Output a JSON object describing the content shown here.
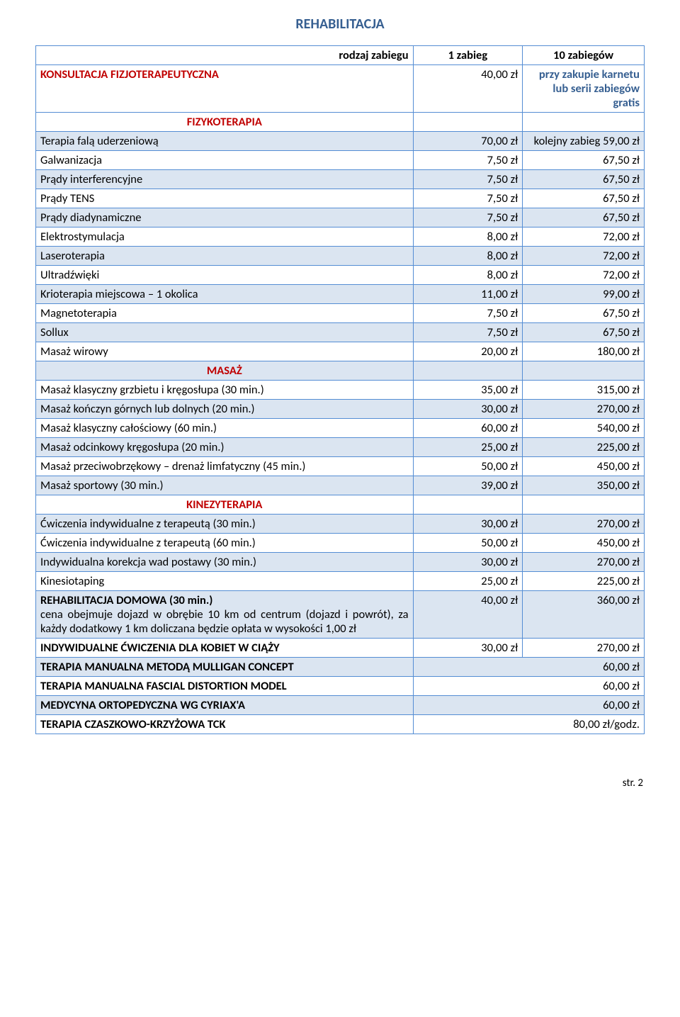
{
  "title": "REHABILITACJA",
  "header": {
    "c1": "rodzaj zabiegu",
    "c2": "1 zabieg",
    "c3": "10 zabiegów"
  },
  "rows": [
    {
      "id": "konsultacja",
      "c1": "KONSULTACJA FIZJOTERAPEUTYCZNA",
      "c2": "40,00 zł",
      "c3": "przy zakupie karnetu lub serii zabiegów gratis",
      "c1_class": "red",
      "c3_class": "blue-text"
    },
    {
      "id": "fizykoterapia-hdr",
      "c1": "FIZYKOTERAPIA",
      "c1_class": "red center"
    },
    {
      "id": "fala",
      "c1": "Terapia falą uderzeniową",
      "c2": "70,00 zł",
      "c3": "kolejny zabieg 59,00 zł",
      "shade": true
    },
    {
      "id": "galwanizacja",
      "c1": "Galwanizacja",
      "c2": "7,50 zł",
      "c3": "67,50 zł"
    },
    {
      "id": "interferencyjne",
      "c1": "Prądy interferencyjne",
      "c2": "7,50 zł",
      "c3": "67,50 zł",
      "shade": true
    },
    {
      "id": "tens",
      "c1": "Prądy TENS",
      "c2": "7,50 zł",
      "c3": "67,50 zł"
    },
    {
      "id": "diadynamiczne",
      "c1": "Prądy diadynamiczne",
      "c2": "7,50 zł",
      "c3": "67,50 zł",
      "shade": true
    },
    {
      "id": "elektrostymulacja",
      "c1": "Elektrostymulacja",
      "c2": "8,00 zł",
      "c3": "72,00 zł"
    },
    {
      "id": "laseroterapia",
      "c1": "Laseroterapia",
      "c2": "8,00 zł",
      "c3": "72,00 zł",
      "shade": true
    },
    {
      "id": "ultradzwieki",
      "c1": "Ultradźwięki",
      "c2": "8,00 zł",
      "c3": "72,00 zł"
    },
    {
      "id": "krioterapia",
      "c1": "Krioterapia miejscowa – 1 okolica",
      "c2": "11,00 zł",
      "c3": "99,00 zł",
      "shade": true
    },
    {
      "id": "magnetoterapia",
      "c1": "Magnetoterapia",
      "c2": "7,50 zł",
      "c3": "67,50 zł"
    },
    {
      "id": "sollux",
      "c1": "Sollux",
      "c2": "7,50 zł",
      "c3": "67,50 zł",
      "shade": true
    },
    {
      "id": "wirowy",
      "c1": "Masaż wirowy",
      "c2": "20,00 zł",
      "c3": "180,00 zł"
    },
    {
      "id": "masaz-hdr",
      "c1": "MASAŻ",
      "c1_class": "red center",
      "shade": true
    },
    {
      "id": "masaz-grzbiet",
      "c1": "Masaż klasyczny grzbietu i kręgosłupa (30 min.)",
      "c2": "35,00 zł",
      "c3": "315,00 zł"
    },
    {
      "id": "masaz-konczyny",
      "c1": "Masaż kończyn górnych lub dolnych (20 min.)",
      "c2": "30,00 zł",
      "c3": "270,00 zł",
      "shade": true
    },
    {
      "id": "masaz-calosciowy",
      "c1": "Masaż klasyczny całościowy (60 min.)",
      "c2": "60,00 zł",
      "c3": "540,00 zł"
    },
    {
      "id": "masaz-odcinkowy",
      "c1": "Masaż odcinkowy kręgosłupa (20 min.)",
      "c2": "25,00 zł",
      "c3": "225,00 zł",
      "shade": true
    },
    {
      "id": "masaz-drenaz",
      "c1": "Masaż przeciwobrzękowy – drenaż limfatyczny (45 min.)",
      "c2": "50,00 zł",
      "c3": "450,00 zł"
    },
    {
      "id": "masaz-sportowy",
      "c1": "Masaż sportowy (30 min.)",
      "c2": "39,00 zł",
      "c3": "350,00 zł",
      "shade": true
    },
    {
      "id": "kinezy-hdr",
      "c1": "KINEZYTERAPIA",
      "c1_class": "red center"
    },
    {
      "id": "cwiczenia30",
      "c1": "Ćwiczenia indywidualne z terapeutą (30 min.)",
      "c2": "30,00 zł",
      "c3": "270,00 zł",
      "shade": true
    },
    {
      "id": "cwiczenia60",
      "c1": "Ćwiczenia indywidualne z terapeutą (60 min.)",
      "c2": "50,00 zł",
      "c3": "450,00 zł"
    },
    {
      "id": "korekcja",
      "c1": "Indywidualna korekcja wad postawy (30 min.)",
      "c2": "30,00 zł",
      "c3": "270,00 zł",
      "shade": true
    },
    {
      "id": "kinesiotaping",
      "c1": "Kinesiotaping",
      "c2": "25,00 zł",
      "c3": "225,00 zł"
    },
    {
      "id": "domowa",
      "title": "REHABILITACJA DOMOWA (30 min.)",
      "desc": "cena obejmuje dojazd w obrębie 10 km od centrum (dojazd i powrót), za każdy dodatkowy 1 km doliczana będzie opłata w wysokości 1,00 zł",
      "c2": "40,00 zł",
      "c3": "360,00 zł",
      "shade": true
    },
    {
      "id": "ciaza",
      "c1": "INDYWIDUALNE ĆWICZENIA DLA KOBIET W CIĄŻY",
      "c2": "30,00 zł",
      "c3": "270,00 zł",
      "c1_class": "bold"
    },
    {
      "id": "mulligan",
      "c1": "TERAPIA MANUALNA METODĄ MULLIGAN CONCEPT",
      "c23": "60,00 zł",
      "c1_class": "bold",
      "shade": true
    },
    {
      "id": "fascial",
      "c1": "TERAPIA MANUALNA FASCIAL DISTORTION MODEL",
      "c23": "60,00 zł",
      "c1_class": "bold"
    },
    {
      "id": "cyriax",
      "c1": "MEDYCYNA ORTOPEDYCZNA WG CYRIAX'A",
      "c23": "60,00 zł",
      "c1_class": "bold",
      "shade": true
    },
    {
      "id": "tck",
      "c1": "TERAPIA CZASZKOWO-KRZYŻOWA TCK",
      "c23": "80,00 zł/godz.",
      "c1_class": "bold"
    }
  ],
  "footer": "str. 2",
  "colors": {
    "heading": "#365f91",
    "border": "#548dd4",
    "shade": "#dbe5f1",
    "red": "#c00000"
  }
}
